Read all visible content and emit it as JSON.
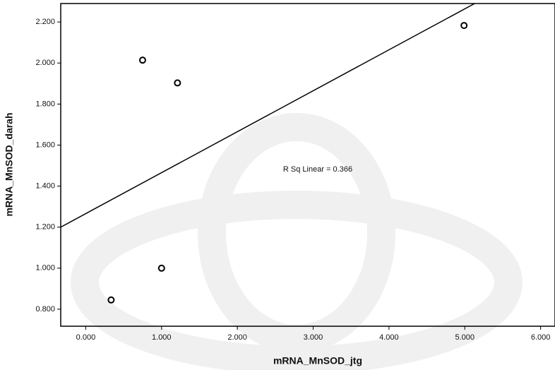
{
  "chart_data": {
    "type": "scatter",
    "x_label": "mRNA_MnSOD_jtg",
    "y_label": "mRNA_MnSOD_darah",
    "annotation": "R Sq Linear = 0.366",
    "x": [
      0.335,
      0.75,
      1.21,
      1.0,
      4.99
    ],
    "values": [
      0.845,
      2.014,
      1.903,
      1.0,
      2.183
    ],
    "color": "#000000",
    "fit_line": {
      "x": [
        -0.33,
        5.13
      ],
      "y": [
        1.2,
        2.29
      ]
    },
    "xlim": [
      -0.33,
      6.19
    ],
    "ylim": [
      0.717,
      2.29
    ],
    "xticks": [
      {
        "value": 0,
        "label": "0.000"
      },
      {
        "value": 1,
        "label": "1.000"
      },
      {
        "value": 2,
        "label": "2.000"
      },
      {
        "value": 3,
        "label": "3.000"
      },
      {
        "value": 4,
        "label": "4.000"
      },
      {
        "value": 5,
        "label": "5.000"
      },
      {
        "value": 6,
        "label": "6.000"
      }
    ],
    "yticks": [
      {
        "value": 0.8,
        "label": "0.800"
      },
      {
        "value": 1.0,
        "label": "1.000"
      },
      {
        "value": 1.2,
        "label": "1.200"
      },
      {
        "value": 1.4,
        "label": "1.400"
      },
      {
        "value": 1.6,
        "label": "1.600"
      },
      {
        "value": 1.8,
        "label": "1.800"
      },
      {
        "value": 2.0,
        "label": "2.000"
      },
      {
        "value": 2.2,
        "label": "2.200"
      }
    ]
  }
}
